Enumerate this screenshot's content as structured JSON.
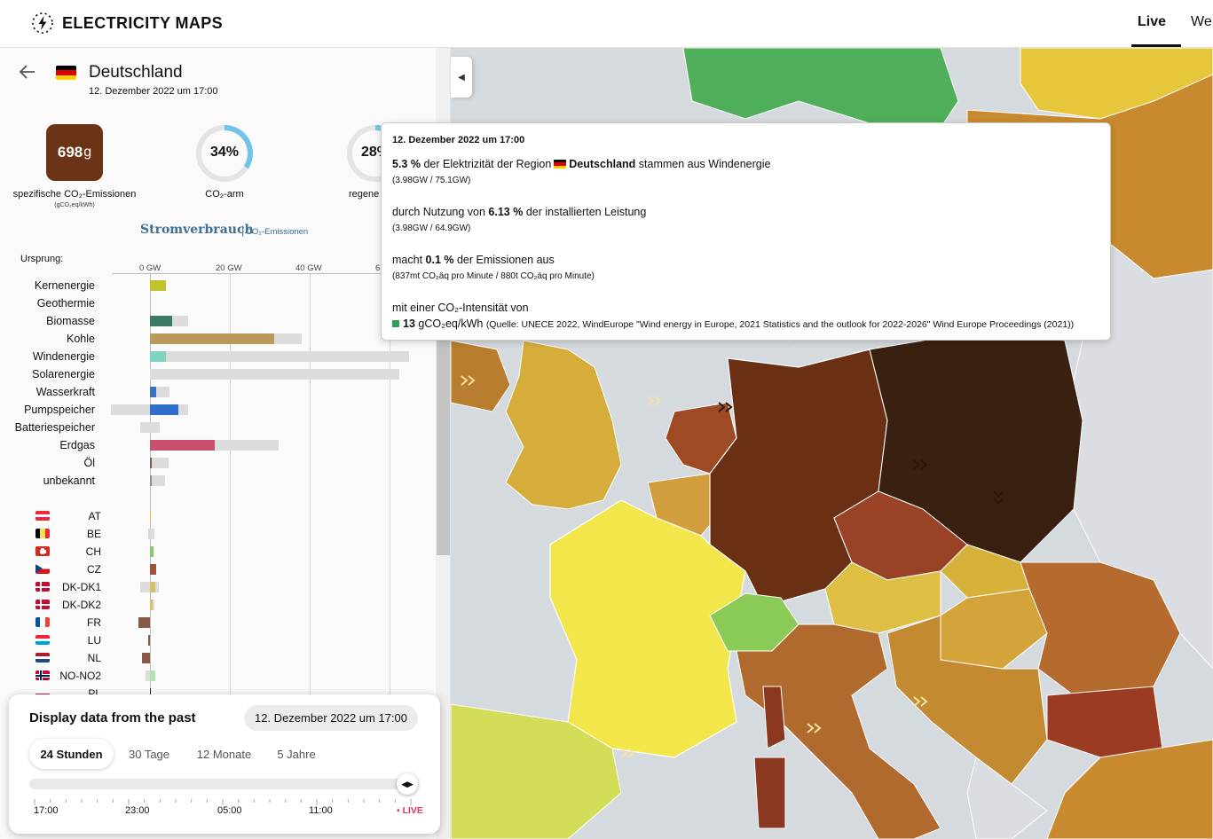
{
  "header": {
    "brand": "ELECTRICITY MAPS",
    "nav_live": "Live",
    "nav_web": "We"
  },
  "panel": {
    "zone_name": "Deutschland",
    "date": "12. Dezember 2022 um 17:00",
    "intensity_value": "698",
    "intensity_unit": "g",
    "intensity_label": "spezifische CO₂-Emissionen",
    "intensity_sub": "(gCO₂eq/kWh)",
    "low_carbon_value": "34%",
    "low_carbon_fraction": 0.34,
    "low_carbon_label": "CO₂-arm",
    "renewable_value": "28%",
    "renewable_fraction": 0.28,
    "renewable_label": "regene",
    "tab_consumption": "Stromverbrauch",
    "tab_separator": "|",
    "tab_emissions": "CO₂-Emissionen",
    "origin_label": "Ursprung:",
    "axis_ticks": [
      "0 GW",
      "20 GW",
      "40 GW",
      "6"
    ],
    "sources": [
      {
        "label": "Kernenergie",
        "color": "#c0c32b",
        "production_gw": 4.0,
        "capacity_gw": 4.0
      },
      {
        "label": "Geothermie",
        "color": "#a0a0a0",
        "production_gw": 0,
        "capacity_gw": 0
      },
      {
        "label": "Biomasse",
        "color": "#3d7a63",
        "production_gw": 5.5,
        "capacity_gw": 9.5
      },
      {
        "label": "Kohle",
        "color": "#b99a5a",
        "production_gw": 31,
        "capacity_gw": 38
      },
      {
        "label": "Windenergie",
        "color": "#7fd4bf",
        "production_gw": 3.98,
        "capacity_gw": 64.9
      },
      {
        "label": "Solarenergie",
        "color": "#f5c000",
        "production_gw": 0,
        "capacity_gw": 62.5
      },
      {
        "label": "Wasserkraft",
        "color": "#3b6fbf",
        "production_gw": 1.5,
        "capacity_gw": 4.8
      },
      {
        "label": "Pumpspeicher",
        "color": "#2f6fcb",
        "production_gw": 7.2,
        "capacity_gw": 9.6,
        "negative_gw": -9.7
      },
      {
        "label": "Batteriespeicher",
        "color": "#9a9a9a",
        "production_gw": 0,
        "capacity_gw": 2.5,
        "negative_gw": -2.5
      },
      {
        "label": "Erdgas",
        "color": "#c9506c",
        "production_gw": 16.3,
        "capacity_gw": 32.2
      },
      {
        "label": "Öl",
        "color": "#7a5a48",
        "production_gw": 0.4,
        "capacity_gw": 4.7
      },
      {
        "label": "unbekannt",
        "color": "#8c8c8c",
        "production_gw": 0.5,
        "capacity_gw": 3.7
      }
    ],
    "exchanges": [
      {
        "code": "AT",
        "flag": "at",
        "value_gw": 0.3,
        "color": "#d4c23a"
      },
      {
        "code": "BE",
        "flag": "be",
        "value_gw": -0.5,
        "color": "#d8d8d8",
        "extra_gw": 1.0
      },
      {
        "code": "CH",
        "flag": "ch",
        "value_gw": 0.8,
        "color": "#8ac96a"
      },
      {
        "code": "CZ",
        "flag": "cz",
        "value_gw": 1.5,
        "color": "#a0533a"
      },
      {
        "code": "DK-DK1",
        "flag": "dk",
        "value_gw": 1.3,
        "color": "#d6c16a",
        "neg_gw": -2.4,
        "extra_gw": 2.2
      },
      {
        "code": "DK-DK2",
        "flag": "dk",
        "value_gw": 0.6,
        "color": "#d6c16a",
        "extra_gw": 1.0
      },
      {
        "code": "FR",
        "flag": "fr",
        "value_gw": -3.0,
        "color": "#8a5a48"
      },
      {
        "code": "LU",
        "flag": "lu",
        "value_gw": -0.5,
        "color": "#8a5a48"
      },
      {
        "code": "NL",
        "flag": "nl",
        "value_gw": -1.9,
        "color": "#8a5a48"
      },
      {
        "code": "NO-NO2",
        "flag": "no",
        "value_gw": 1.4,
        "color": "#b5e3b0",
        "neg_gw": -1.2
      },
      {
        "code": "PL",
        "flag": "pl",
        "value_gw": 0.3,
        "color": "#3a2210"
      }
    ]
  },
  "timecard": {
    "title": "Display data from the past",
    "date": "12. Dezember 2022 um 17:00",
    "tabs": [
      "24 Stunden",
      "30 Tage",
      "12 Monate",
      "5 Jahre"
    ],
    "active_tab": "24 Stunden",
    "slider_position": 1.0,
    "labels": [
      "17:00",
      "23:00",
      "05:00",
      "11:00"
    ],
    "live_label": "• LIVE"
  },
  "tooltip": {
    "date": "12. Dezember 2022 um 17:00",
    "line1_pct": "5.3 %",
    "line1_mid": "der Elektrizität der Region",
    "line1_zone": "Deutschland",
    "line1_end": "stammen aus Windenergie",
    "line1_sub": "(3.98GW / 75.1GW)",
    "line2_start": "durch Nutzung von",
    "line2_pct": "6.13 %",
    "line2_end": "der installierten Leistung",
    "line2_sub": "(3.98GW / 64.9GW)",
    "line3_start": "macht",
    "line3_pct": "0.1 %",
    "line3_end": "der Emissionen aus",
    "line3_sub": "(837mt CO₂äq pro Minute / 880t CO₂äq pro Minute)",
    "line4": "mit einer CO₂-Intensität von",
    "line4_value": "13",
    "line4_unit": "gCO₂eq/kWh",
    "line4_source": "(Quelle: UNECE 2022, WindEurope \"Wind energy in Europe, 2021 Statistics and the outlook for 2022-2026\" Wind Europe Proceedings (2021))"
  },
  "colors": {
    "accent_blue": "#3e6f95",
    "intensity_box": "#6b3417",
    "ring_blue": "#6fc5e8",
    "live_red": "#de3a5a"
  },
  "icons": [
    "lightning-logo-icon",
    "back-arrow-icon",
    "collapse-chevron-icon",
    "slider-arrows-icon"
  ]
}
